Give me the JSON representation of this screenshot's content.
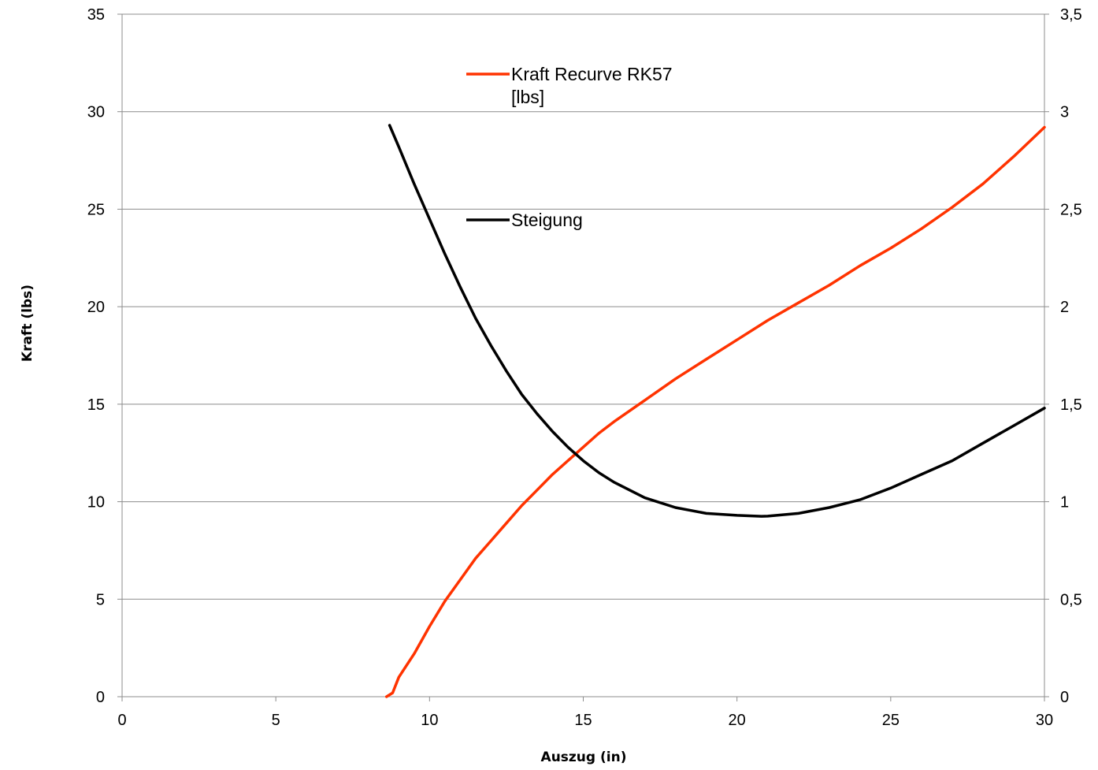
{
  "chart_data": {
    "type": "line",
    "title": "",
    "xlabel": "Auszug (in)",
    "ylabel": "Kraft (lbs)",
    "y2label": "",
    "xlim": [
      0,
      30
    ],
    "ylim": [
      0,
      35
    ],
    "y2lim": [
      0,
      3.5
    ],
    "x_ticks": [
      "0",
      "5",
      "10",
      "15",
      "20",
      "25",
      "30"
    ],
    "y_ticks": [
      "0",
      "5",
      "10",
      "15",
      "20",
      "25",
      "30",
      "35"
    ],
    "y2_ticks": [
      "0",
      "0,5",
      "1",
      "1,5",
      "2",
      "2,5",
      "3",
      "3,5"
    ],
    "grid": "horizontal",
    "legend_position": "inside-top-center",
    "series": [
      {
        "name": "Kraft Recurve RK57 [lbs]",
        "legend_lines": [
          "Kraft Recurve RK57",
          "[lbs]"
        ],
        "axis": "left",
        "color": "#ff3300",
        "x": [
          8.6,
          8.8,
          9,
          9.5,
          10,
          10.5,
          11,
          11.5,
          12,
          12.5,
          13,
          13.5,
          14,
          14.5,
          15,
          15.5,
          16,
          17,
          18,
          19,
          20,
          21,
          22,
          23,
          24,
          25,
          26,
          27,
          28,
          29,
          30
        ],
        "values": [
          0,
          0.2,
          1,
          2.2,
          3.6,
          4.9,
          6,
          7.1,
          8,
          8.9,
          9.8,
          10.6,
          11.4,
          12.1,
          12.8,
          13.5,
          14.1,
          15.2,
          16.3,
          17.3,
          18.3,
          19.3,
          20.2,
          21.1,
          22.1,
          23,
          24,
          25.1,
          26.3,
          27.7,
          29.2
        ]
      },
      {
        "name": "Steigung",
        "legend_lines": [
          "Steigung"
        ],
        "axis": "right",
        "color": "#000000",
        "x": [
          8.7,
          9,
          9.5,
          10,
          10.5,
          11,
          11.5,
          12,
          12.5,
          13,
          13.5,
          14,
          14.5,
          15,
          15.5,
          16,
          17,
          18,
          19,
          20,
          20.8,
          21,
          22,
          23,
          24,
          25,
          26,
          27,
          28,
          29,
          30
        ],
        "values": [
          2.93,
          2.82,
          2.63,
          2.45,
          2.27,
          2.1,
          1.94,
          1.8,
          1.67,
          1.55,
          1.45,
          1.36,
          1.28,
          1.21,
          1.15,
          1.1,
          1.02,
          0.97,
          0.94,
          0.93,
          0.925,
          0.926,
          0.94,
          0.97,
          1.01,
          1.07,
          1.14,
          1.21,
          1.3,
          1.39,
          1.48
        ]
      }
    ]
  }
}
